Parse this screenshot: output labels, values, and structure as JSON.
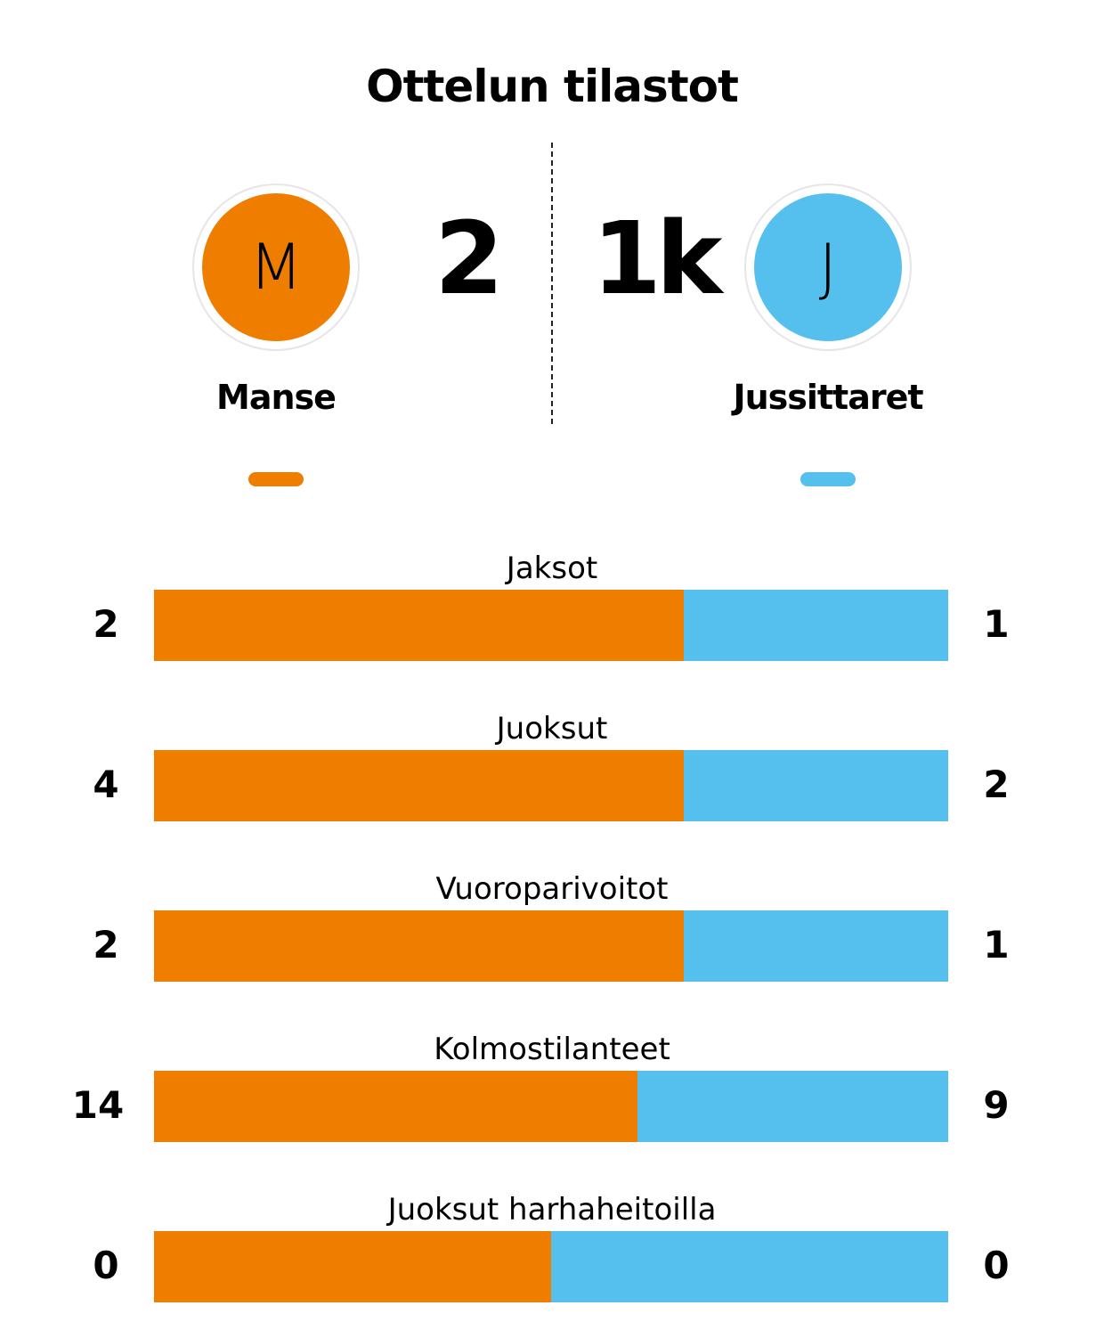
{
  "title": "Ottelun tilastot",
  "home": {
    "name": "Manse",
    "initial": "M",
    "score": "2",
    "color": "#EE7D00"
  },
  "away": {
    "name": "Jussittaret",
    "initial": "J",
    "score": "1k",
    "color": "#55C0EE"
  },
  "chart_data": {
    "type": "bar",
    "orientation": "horizontal-stacked-share",
    "categories": [
      "Jaksot",
      "Juoksut",
      "Vuoroparivoitot",
      "Kolmostilanteet",
      "Juoksut harhaheitoilla"
    ],
    "series": [
      {
        "name": "Manse",
        "values": [
          2,
          4,
          2,
          14,
          0
        ]
      },
      {
        "name": "Jussittaret",
        "values": [
          1,
          2,
          1,
          9,
          0
        ]
      }
    ]
  }
}
